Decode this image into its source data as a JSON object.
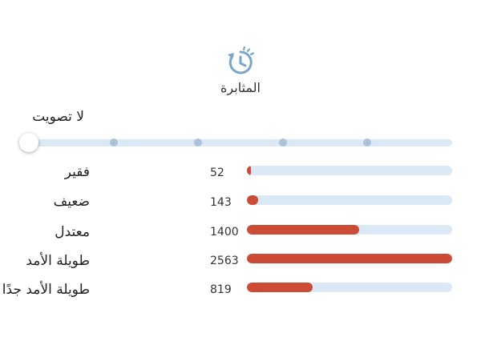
{
  "header": {
    "icon": "history-clock-icon",
    "title": "المثابرة"
  },
  "vote_label": "لا تصويت",
  "slider": {
    "selected_index": 0,
    "steps": 6
  },
  "colors": {
    "accent": "#cc4b37",
    "track": "#dbe8f5",
    "icon": "#7aa6c9"
  },
  "rows": [
    {
      "label": "فقير",
      "count": "52",
      "fraction": 0.02
    },
    {
      "label": "ضعيف",
      "count": "143",
      "fraction": 0.055
    },
    {
      "label": "معتدل",
      "count": "1400",
      "fraction": 0.546
    },
    {
      "label": "طويلة الأمد",
      "count": "2563",
      "fraction": 1.0
    },
    {
      "label": "طويلة الأمد جدًا",
      "count": "819",
      "fraction": 0.32
    }
  ]
}
